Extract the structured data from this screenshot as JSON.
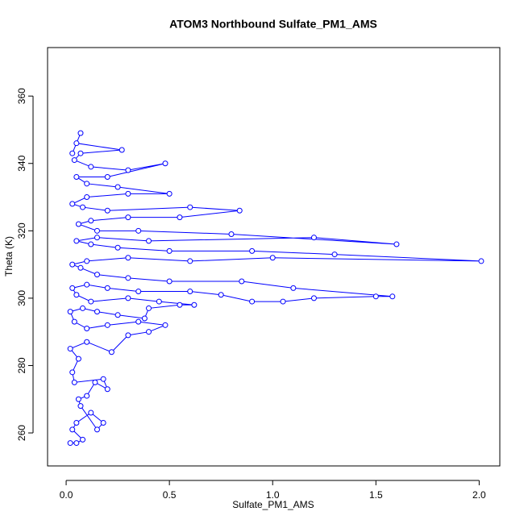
{
  "chart_data": {
    "type": "line",
    "markers": true,
    "title": "ATOM3 Northbound Sulfate_PM1_AMS",
    "x_label": "Sulfate_PM1_AMS",
    "y_label": "Theta (K)",
    "color": "#0000ff",
    "x": [
      0.02,
      0.05,
      0.08,
      0.03,
      0.05,
      0.12,
      0.18,
      0.15,
      0.07,
      0.06,
      0.1,
      0.14,
      0.2,
      0.18,
      0.04,
      0.03,
      0.06,
      0.02,
      0.1,
      0.22,
      0.3,
      0.4,
      0.48,
      0.35,
      0.2,
      0.1,
      0.04,
      0.02,
      0.08,
      0.15,
      0.25,
      0.38,
      0.4,
      0.55,
      0.62,
      0.45,
      0.3,
      0.12,
      0.05,
      0.03,
      0.1,
      0.2,
      0.35,
      0.6,
      0.75,
      0.9,
      1.05,
      1.2,
      1.5,
      1.58,
      1.1,
      0.85,
      0.5,
      0.3,
      0.15,
      0.07,
      0.03,
      0.1,
      0.3,
      0.6,
      1.0,
      2.01,
      1.3,
      0.9,
      0.5,
      0.25,
      0.12,
      0.05,
      0.15,
      0.4,
      1.2,
      1.6,
      0.8,
      0.35,
      0.15,
      0.06,
      0.12,
      0.3,
      0.55,
      0.84,
      0.6,
      0.2,
      0.08,
      0.03,
      0.1,
      0.3,
      0.5,
      0.25,
      0.1,
      0.05,
      0.2,
      0.48,
      0.3,
      0.12,
      0.04,
      0.07,
      0.27,
      0.05,
      0.07,
      0.03
    ],
    "values": [
      257,
      257,
      258,
      261,
      263,
      266,
      263,
      261,
      268,
      270,
      271,
      275,
      273,
      276,
      275,
      278,
      282,
      285,
      287,
      284,
      289,
      290,
      292,
      293,
      292,
      291,
      293,
      296,
      297,
      296,
      295,
      294,
      297,
      298,
      298,
      299,
      300,
      299,
      301,
      303,
      304,
      303,
      302,
      302,
      301,
      299,
      299,
      300,
      300.5,
      300.5,
      303,
      305,
      305,
      306,
      307,
      309,
      310,
      311,
      312,
      311,
      312,
      311,
      313,
      314,
      314,
      315,
      316,
      317,
      318,
      317,
      318,
      316,
      319,
      320,
      320,
      322,
      323,
      324,
      324,
      326,
      327,
      326,
      327,
      328,
      330,
      331,
      331,
      333,
      334,
      336,
      336,
      340,
      338,
      339,
      341,
      343,
      344,
      346,
      349,
      343
    ],
    "xlim": [
      -0.09,
      2.1
    ],
    "ylim": [
      250.2,
      374.4
    ],
    "xticks": [
      {
        "value": 0,
        "label": "0.0"
      },
      0.5,
      {
        "value": 1,
        "label": "1.0"
      },
      1.5,
      {
        "value": 2,
        "label": "2.0"
      }
    ],
    "yticks": [
      260,
      280,
      300,
      320,
      340,
      360
    ]
  }
}
